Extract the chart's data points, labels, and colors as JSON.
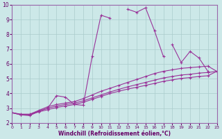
{
  "xlabel": "Windchill (Refroidissement éolien,°C)",
  "xlim": [
    0,
    23
  ],
  "ylim": [
    2,
    10
  ],
  "yticks": [
    2,
    3,
    4,
    5,
    6,
    7,
    8,
    9,
    10
  ],
  "xticks": [
    0,
    1,
    2,
    3,
    4,
    5,
    6,
    7,
    8,
    9,
    10,
    11,
    12,
    13,
    14,
    15,
    16,
    17,
    18,
    19,
    20,
    21,
    22,
    23
  ],
  "xticklabels": [
    "0",
    "1",
    "2",
    "3",
    "4",
    "5",
    "6",
    "7",
    "8",
    "9",
    "1011",
    "12",
    "13",
    "14",
    "15",
    "16",
    "17",
    "18",
    "19",
    "20",
    "21",
    "2223",
    "",
    ""
  ],
  "background_color": "#cce8e8",
  "grid_color": "#aacccc",
  "line_color": "#993399",
  "lines": [
    {
      "x": [
        0,
        1,
        2,
        3,
        4,
        5,
        6,
        7,
        8,
        9,
        10,
        11
      ],
      "y": [
        2.7,
        2.55,
        2.5,
        2.8,
        3.0,
        3.85,
        3.75,
        3.25,
        3.2,
        6.5,
        9.3,
        9.1
      ]
    },
    {
      "x": [
        13,
        14,
        15,
        16,
        17
      ],
      "y": [
        9.7,
        9.5,
        9.8,
        8.25,
        6.5
      ]
    },
    {
      "x": [
        18,
        19,
        20,
        21,
        22
      ],
      "y": [
        7.3,
        6.1,
        6.85,
        6.4,
        5.5
      ]
    },
    {
      "x": [
        0,
        1,
        2,
        3,
        4,
        5,
        6,
        7,
        8,
        9,
        10,
        11,
        12,
        13,
        14,
        15,
        16,
        17,
        18,
        19,
        20,
        21,
        22,
        23
      ],
      "y": [
        2.7,
        2.6,
        2.6,
        2.85,
        3.1,
        3.25,
        3.35,
        3.45,
        3.65,
        3.9,
        4.15,
        4.35,
        4.55,
        4.75,
        4.95,
        5.15,
        5.35,
        5.5,
        5.6,
        5.7,
        5.75,
        5.8,
        5.85,
        5.5
      ]
    },
    {
      "x": [
        0,
        1,
        2,
        3,
        4,
        5,
        6,
        7,
        8,
        9,
        10,
        11,
        12,
        13,
        14,
        15,
        16,
        17,
        18,
        19,
        20,
        21,
        22,
        23
      ],
      "y": [
        2.7,
        2.58,
        2.58,
        2.8,
        3.0,
        3.15,
        3.25,
        3.35,
        3.5,
        3.7,
        3.9,
        4.1,
        4.28,
        4.45,
        4.6,
        4.75,
        4.9,
        5.05,
        5.15,
        5.25,
        5.3,
        5.38,
        5.42,
        5.5
      ]
    },
    {
      "x": [
        0,
        1,
        2,
        3,
        4,
        5,
        6,
        7,
        8,
        9,
        10,
        11,
        12,
        13,
        14,
        15,
        16,
        17,
        18,
        19,
        20,
        21,
        22,
        23
      ],
      "y": [
        2.7,
        2.55,
        2.55,
        2.75,
        2.9,
        3.05,
        3.15,
        3.25,
        3.4,
        3.6,
        3.8,
        4.0,
        4.15,
        4.3,
        4.42,
        4.55,
        4.68,
        4.82,
        4.92,
        5.02,
        5.08,
        5.15,
        5.2,
        5.5
      ]
    }
  ]
}
